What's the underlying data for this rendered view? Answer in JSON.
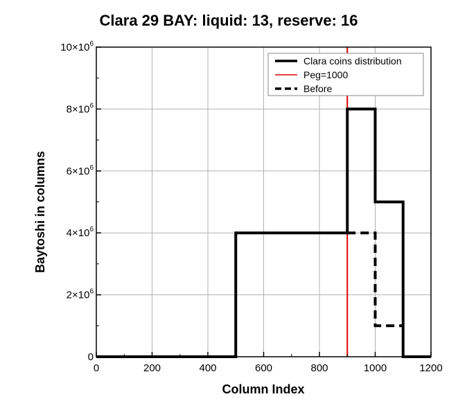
{
  "chart_data": {
    "type": "line",
    "title": "Clara 29 BAY: liquid: 13, reserve: 16",
    "xlabel": "Column Index",
    "ylabel": "Baytoshi in columns",
    "xlim": [
      0,
      1200
    ],
    "ylim": [
      0,
      10000000
    ],
    "x_ticks": [
      {
        "value": 0,
        "label": "0"
      },
      {
        "value": 200,
        "label": "200"
      },
      {
        "value": 400,
        "label": "400"
      },
      {
        "value": 600,
        "label": "600"
      },
      {
        "value": 800,
        "label": "800"
      },
      {
        "value": 1000,
        "label": "1000"
      },
      {
        "value": 1200,
        "label": "1200"
      }
    ],
    "y_ticks": [
      {
        "value": 0,
        "label": "0"
      },
      {
        "value": 2000000,
        "label": "2×10",
        "exp": "6"
      },
      {
        "value": 4000000,
        "label": "4×10",
        "exp": "6"
      },
      {
        "value": 6000000,
        "label": "6×10",
        "exp": "6"
      },
      {
        "value": 8000000,
        "label": "8×10",
        "exp": "6"
      },
      {
        "value": 10000000,
        "label": "10×10",
        "exp": "6"
      }
    ],
    "grid": true,
    "legend_position": "top-right",
    "series": [
      {
        "name": "Clara coins distribution",
        "style": "solid",
        "color": "#000000",
        "x": [
          0,
          500,
          500,
          900,
          900,
          1000,
          1000,
          1100,
          1100,
          1200
        ],
        "y": [
          0,
          0,
          4000000,
          4000000,
          8000000,
          8000000,
          5000000,
          5000000,
          0,
          0
        ]
      },
      {
        "name": "Peg=1000",
        "style": "solid",
        "color": "#dd0000",
        "x": [
          900,
          900
        ],
        "y": [
          0,
          10000000
        ]
      },
      {
        "name": "Before",
        "style": "dashed",
        "color": "#000000",
        "x": [
          900,
          1000,
          1000,
          1100
        ],
        "y": [
          4000000,
          4000000,
          1000000,
          1000000
        ]
      }
    ]
  }
}
